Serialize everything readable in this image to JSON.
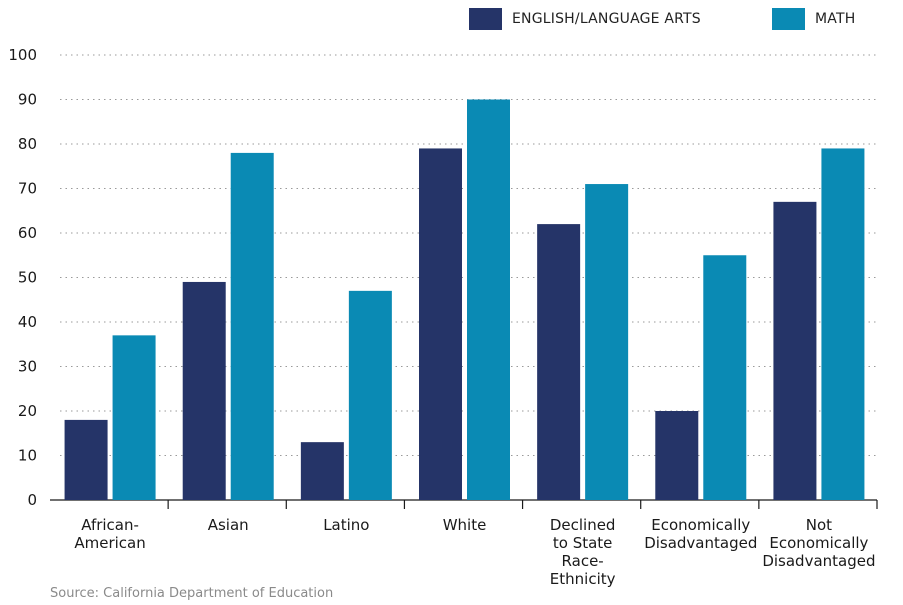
{
  "legend": [
    {
      "label": "ENGLISH/LANGUAGE ARTS",
      "color": "#253468"
    },
    {
      "label": "MATH",
      "color": "#0a8ab4"
    }
  ],
  "source": "Source:  California Department of Education",
  "chart_data": {
    "type": "bar",
    "categories": [
      [
        "African-",
        "American"
      ],
      [
        "Asian"
      ],
      [
        "Latino"
      ],
      [
        "White"
      ],
      [
        "Declined",
        "to State",
        "Race-",
        "Ethnicity"
      ],
      [
        "Economically",
        "Disadvantaged"
      ],
      [
        "Not",
        "Economically",
        "Disadvantaged"
      ]
    ],
    "series": [
      {
        "name": "ENGLISH/LANGUAGE ARTS",
        "color": "#253468",
        "values": [
          18,
          49,
          13,
          79,
          62,
          20,
          67
        ]
      },
      {
        "name": "MATH",
        "color": "#0a8ab4",
        "values": [
          37,
          78,
          47,
          90,
          71,
          55,
          79
        ]
      }
    ],
    "yticks": [
      0,
      10,
      20,
      30,
      40,
      50,
      60,
      70,
      80,
      90,
      100
    ],
    "ylim": [
      0,
      100
    ],
    "grid": "dotted horizontal",
    "legend_position": "top-right"
  }
}
